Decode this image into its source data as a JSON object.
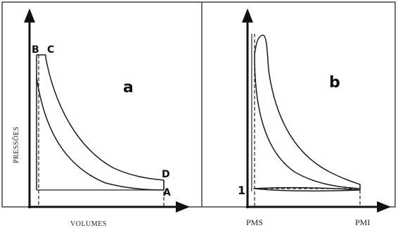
{
  "diagram_a": {
    "label": "a",
    "y_axis_label": "PRESSÕES",
    "x_axis_label": "VOLUMES",
    "points": {
      "B": "B",
      "C": "C",
      "D": "D",
      "A": "A"
    }
  },
  "diagram_b": {
    "label": "b",
    "point_1": "1",
    "x_tick_left": "PMS",
    "x_tick_right": "PMI"
  }
}
